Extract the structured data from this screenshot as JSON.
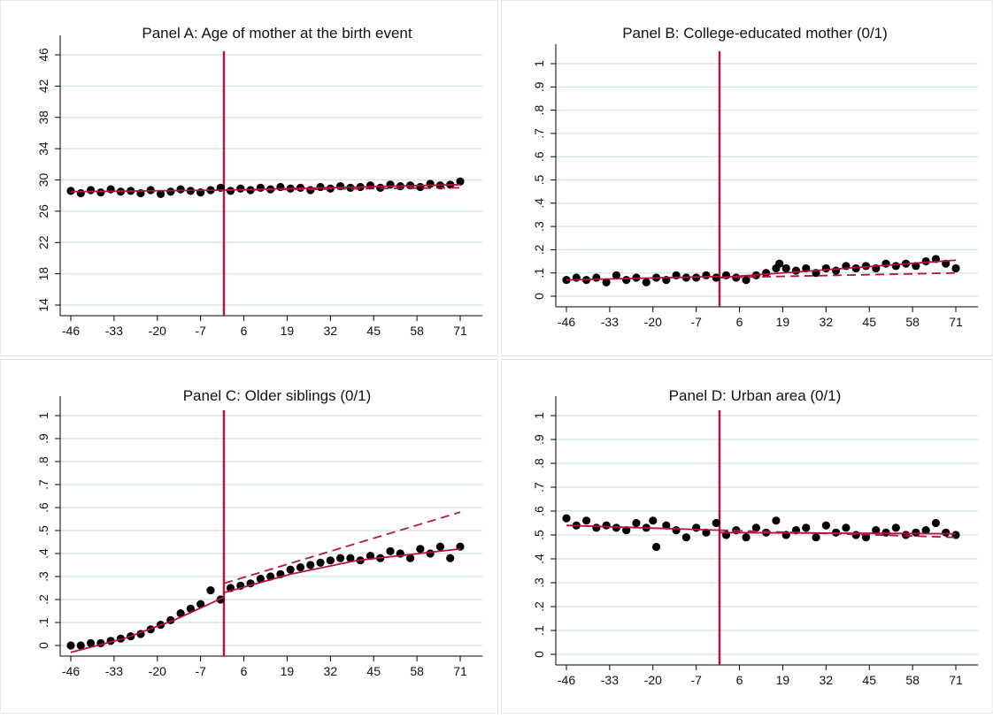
{
  "chart_data": [
    {
      "type": "scatter",
      "title": "Panel A: Age of mother at the birth event",
      "xlabel": "",
      "ylabel": "",
      "x_ticks": [
        "-46",
        "-33",
        "-20",
        "-7",
        "6",
        "19",
        "32",
        "45",
        "58",
        "71"
      ],
      "y_ticks": [
        "14",
        "18",
        "22",
        "26",
        "30",
        "34",
        "38",
        "42",
        "46"
      ],
      "xlim": [
        -46,
        71
      ],
      "ylim": [
        14,
        46
      ],
      "cutoff": 0,
      "grid": true,
      "series": [
        {
          "kind": "scatter",
          "x": [
            -46,
            -43,
            -40,
            -37,
            -34,
            -31,
            -28,
            -25,
            -22,
            -19,
            -16,
            -13,
            -10,
            -7,
            -4,
            -1,
            2,
            5,
            8,
            11,
            14,
            17,
            20,
            23,
            26,
            29,
            32,
            35,
            38,
            41,
            44,
            47,
            50,
            53,
            56,
            59,
            62,
            65,
            68,
            71
          ],
          "y": [
            28.6,
            28.3,
            28.7,
            28.4,
            28.8,
            28.5,
            28.6,
            28.3,
            28.7,
            28.2,
            28.5,
            28.8,
            28.6,
            28.4,
            28.7,
            29.0,
            28.6,
            28.9,
            28.7,
            29.0,
            28.8,
            29.1,
            28.9,
            29.0,
            28.7,
            29.1,
            28.9,
            29.2,
            29.0,
            29.1,
            29.3,
            29.0,
            29.4,
            29.2,
            29.3,
            29.1,
            29.5,
            29.3,
            29.4,
            29.8
          ]
        },
        {
          "kind": "fit",
          "x": [
            -46,
            0
          ],
          "y": [
            28.5,
            28.7
          ]
        },
        {
          "kind": "fit",
          "x": [
            0,
            71
          ],
          "y": [
            28.7,
            29.4
          ]
        },
        {
          "kind": "extrapolation",
          "x": [
            0,
            71
          ],
          "y": [
            28.7,
            29.0
          ]
        }
      ]
    },
    {
      "type": "scatter",
      "title": "Panel B: College-educated mother (0/1)",
      "xlabel": "",
      "ylabel": "",
      "x_ticks": [
        "-46",
        "-33",
        "-20",
        "-7",
        "6",
        "19",
        "32",
        "45",
        "58",
        "71"
      ],
      "y_ticks": [
        "0",
        ".1",
        ".2",
        ".3",
        ".4",
        ".5",
        ".6",
        ".7",
        ".8",
        ".9",
        "1"
      ],
      "xlim": [
        -46,
        71
      ],
      "ylim": [
        0,
        1
      ],
      "cutoff": 0,
      "grid": true,
      "series": [
        {
          "kind": "scatter",
          "x": [
            -46,
            -43,
            -40,
            -37,
            -34,
            -31,
            -28,
            -25,
            -22,
            -19,
            -16,
            -13,
            -10,
            -7,
            -4,
            -1,
            2,
            5,
            8,
            11,
            14,
            17,
            18,
            20,
            23,
            26,
            29,
            32,
            35,
            38,
            41,
            44,
            47,
            50,
            53,
            56,
            59,
            62,
            65,
            68,
            71
          ],
          "y": [
            0.07,
            0.08,
            0.07,
            0.08,
            0.06,
            0.09,
            0.07,
            0.08,
            0.06,
            0.08,
            0.07,
            0.09,
            0.08,
            0.08,
            0.09,
            0.08,
            0.09,
            0.08,
            0.07,
            0.09,
            0.1,
            0.12,
            0.14,
            0.12,
            0.11,
            0.12,
            0.1,
            0.12,
            0.11,
            0.13,
            0.12,
            0.13,
            0.12,
            0.14,
            0.13,
            0.14,
            0.13,
            0.15,
            0.16,
            0.14,
            0.12
          ]
        },
        {
          "kind": "fit",
          "x": [
            -46,
            0
          ],
          "y": [
            0.07,
            0.085
          ]
        },
        {
          "kind": "fit",
          "x": [
            0,
            71
          ],
          "y": [
            0.08,
            0.155
          ]
        },
        {
          "kind": "extrapolation",
          "x": [
            0,
            71
          ],
          "y": [
            0.08,
            0.1
          ]
        }
      ]
    },
    {
      "type": "scatter",
      "title": "Panel C: Older siblings (0/1)",
      "xlabel": "",
      "ylabel": "",
      "x_ticks": [
        "-46",
        "-33",
        "-20",
        "-7",
        "6",
        "19",
        "32",
        "45",
        "58",
        "71"
      ],
      "y_ticks": [
        "0",
        ".1",
        ".2",
        ".3",
        ".4",
        ".5",
        ".6",
        ".7",
        ".8",
        ".9",
        "1"
      ],
      "xlim": [
        -46,
        71
      ],
      "ylim": [
        0,
        1
      ],
      "cutoff": 0,
      "grid": true,
      "series": [
        {
          "kind": "scatter",
          "x": [
            -46,
            -43,
            -40,
            -37,
            -34,
            -31,
            -28,
            -25,
            -22,
            -19,
            -16,
            -13,
            -10,
            -7,
            -4,
            -1,
            2,
            5,
            8,
            11,
            14,
            17,
            20,
            23,
            26,
            29,
            32,
            35,
            38,
            41,
            44,
            47,
            50,
            53,
            56,
            59,
            62,
            65,
            68,
            71
          ],
          "y": [
            0.0,
            0.0,
            0.01,
            0.01,
            0.02,
            0.03,
            0.04,
            0.05,
            0.07,
            0.09,
            0.11,
            0.14,
            0.16,
            0.18,
            0.24,
            0.2,
            0.25,
            0.26,
            0.27,
            0.29,
            0.3,
            0.31,
            0.33,
            0.34,
            0.35,
            0.36,
            0.37,
            0.38,
            0.38,
            0.37,
            0.39,
            0.38,
            0.41,
            0.4,
            0.38,
            0.42,
            0.4,
            0.43,
            0.38,
            0.43
          ]
        },
        {
          "kind": "fit",
          "x": [
            -46,
            -30,
            -15,
            0
          ],
          "y": [
            -0.03,
            0.03,
            0.11,
            0.21
          ]
        },
        {
          "kind": "fit",
          "x": [
            0,
            20,
            40,
            71
          ],
          "y": [
            0.23,
            0.31,
            0.37,
            0.42
          ]
        },
        {
          "kind": "extrapolation",
          "x": [
            0,
            71
          ],
          "y": [
            0.27,
            0.58
          ]
        }
      ]
    },
    {
      "type": "scatter",
      "title": "Panel D: Urban area (0/1)",
      "xlabel": "",
      "ylabel": "",
      "x_ticks": [
        "-46",
        "-33",
        "-20",
        "-7",
        "6",
        "19",
        "32",
        "45",
        "58",
        "71"
      ],
      "y_ticks": [
        "0",
        ".1",
        ".2",
        ".3",
        ".4",
        ".5",
        ".6",
        ".7",
        ".8",
        ".9",
        "1"
      ],
      "xlim": [
        -46,
        71
      ],
      "ylim": [
        0,
        1
      ],
      "cutoff": 0,
      "grid": true,
      "series": [
        {
          "kind": "scatter",
          "x": [
            -46,
            -43,
            -40,
            -37,
            -34,
            -31,
            -28,
            -25,
            -22,
            -20,
            -19,
            -16,
            -13,
            -10,
            -7,
            -4,
            -1,
            2,
            5,
            8,
            11,
            14,
            17,
            20,
            23,
            26,
            29,
            32,
            35,
            38,
            41,
            44,
            47,
            50,
            53,
            56,
            59,
            62,
            65,
            68,
            71
          ],
          "y": [
            0.57,
            0.54,
            0.56,
            0.53,
            0.54,
            0.53,
            0.52,
            0.55,
            0.53,
            0.56,
            0.45,
            0.54,
            0.52,
            0.49,
            0.53,
            0.51,
            0.55,
            0.5,
            0.52,
            0.49,
            0.53,
            0.51,
            0.56,
            0.5,
            0.52,
            0.53,
            0.49,
            0.54,
            0.51,
            0.53,
            0.5,
            0.49,
            0.52,
            0.51,
            0.53,
            0.5,
            0.51,
            0.52,
            0.55,
            0.51,
            0.5
          ]
        },
        {
          "kind": "fit",
          "x": [
            -46,
            0
          ],
          "y": [
            0.54,
            0.52
          ]
        },
        {
          "kind": "fit",
          "x": [
            0,
            71
          ],
          "y": [
            0.51,
            0.505
          ]
        },
        {
          "kind": "extrapolation",
          "x": [
            0,
            71
          ],
          "y": [
            0.52,
            0.49
          ]
        }
      ]
    }
  ],
  "colors": {
    "dots": "#000000",
    "fit": "#b5123c",
    "cutoff": "#b5123c",
    "grid": "#d5e6ea",
    "axis": "#000000"
  }
}
